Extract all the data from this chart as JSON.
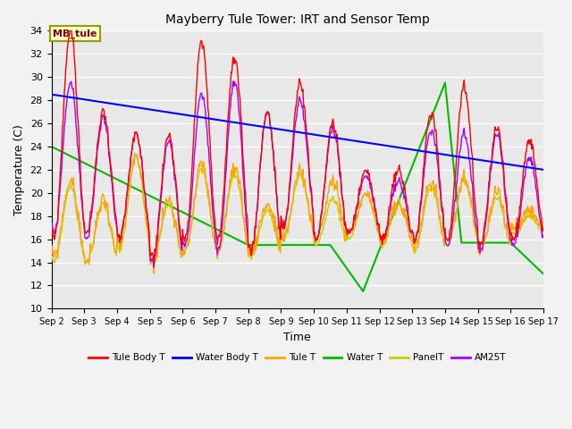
{
  "title": "Mayberry Tule Tower: IRT and Sensor Temp",
  "xlabel": "Time",
  "ylabel": "Temperature (C)",
  "ylim": [
    10,
    34
  ],
  "yticks": [
    10,
    12,
    14,
    16,
    18,
    20,
    22,
    24,
    26,
    28,
    30,
    32,
    34
  ],
  "xtick_labels": [
    "Sep 2",
    "Sep 3",
    "Sep 4",
    "Sep 5",
    "Sep 6",
    "Sep 7",
    "Sep 8",
    "Sep 9",
    "Sep 10",
    "Sep 11",
    "Sep 12",
    "Sep 13",
    "Sep 14",
    "Sep 15",
    "Sep 16",
    "Sep 17"
  ],
  "annotation_text": "MB_tule",
  "series": {
    "Tule Body T": {
      "color": "#ff0000",
      "linewidth": 1.0
    },
    "Water Body T": {
      "color": "#0000ff",
      "linewidth": 1.5
    },
    "Tule T": {
      "color": "#ffa500",
      "linewidth": 1.0
    },
    "Water T": {
      "color": "#00bb00",
      "linewidth": 1.5
    },
    "PanelT": {
      "color": "#cccc00",
      "linewidth": 1.0
    },
    "AM25T": {
      "color": "#aa00ff",
      "linewidth": 1.0
    }
  },
  "background_color": "#e8e8e8",
  "plot_bg_color": "#e8e8e8",
  "fig_bg_color": "#f2f2f2",
  "grid_color": "#ffffff",
  "grid_linewidth": 1.0,
  "figsize": [
    6.4,
    4.8
  ],
  "dpi": 100
}
